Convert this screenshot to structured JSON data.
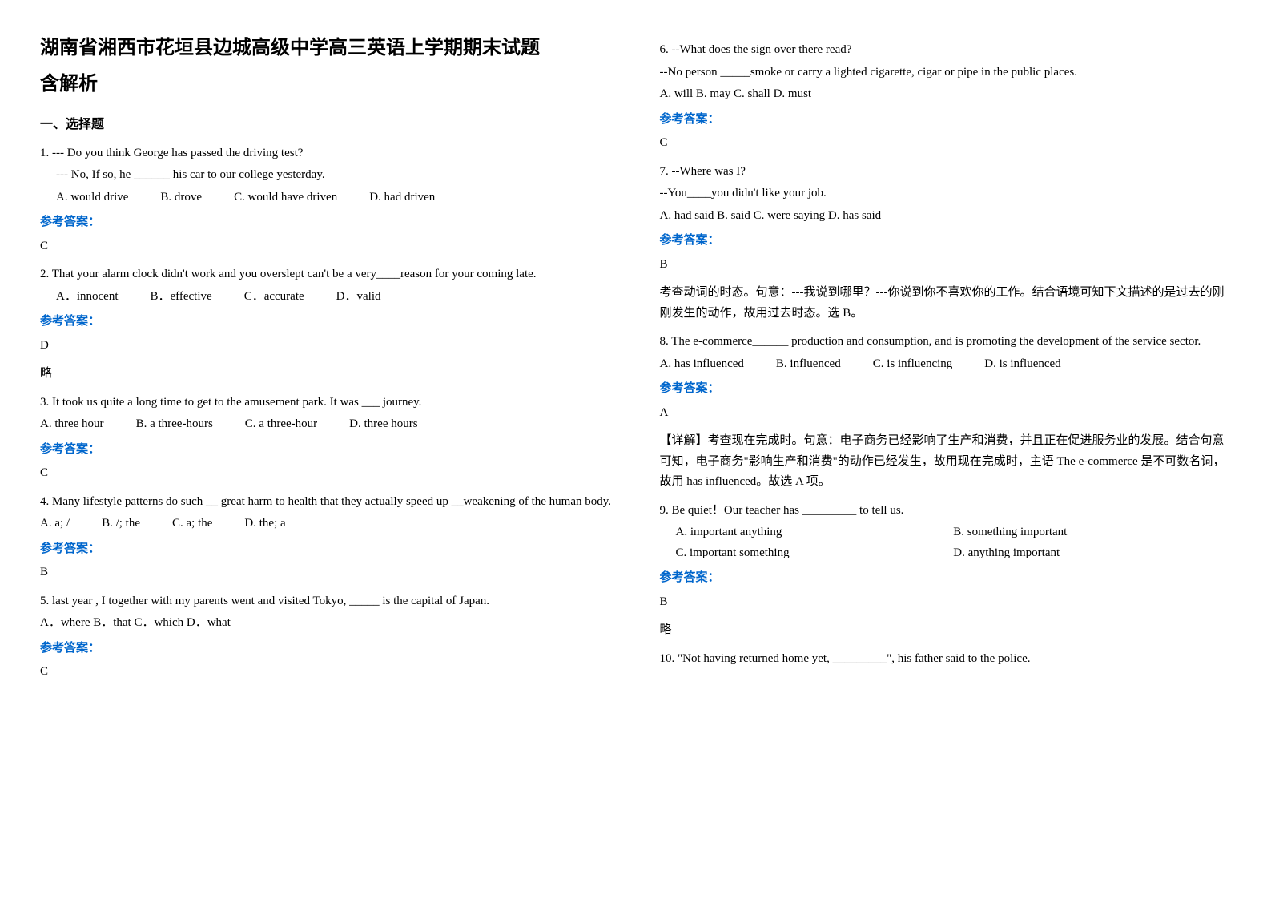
{
  "header": {
    "title": "湖南省湘西市花垣县边城高级中学高三英语上学期期末试题",
    "subtitle": "含解析"
  },
  "sectionHeading": "一、选择题",
  "answerLabel": "参考答案：",
  "columns": {
    "left": {
      "q1": {
        "l1": "1. --- Do you think George has passed the driving test?",
        "l2": "--- No, If so, he ______ his car to our college yesterday.",
        "optA": "A. would drive",
        "optB": "B. drove",
        "optC": "C. would have driven",
        "optD": "D. had driven",
        "answer": "C"
      },
      "q2": {
        "l1": "2. That your alarm clock didn't work and you overslept can't be a very____reason for your coming late.",
        "optA": "A．innocent",
        "optB": "B．effective",
        "optC": "C．accurate",
        "optD": "D．valid",
        "answer": "D",
        "extra": "略"
      },
      "q3": {
        "l1": "3. It took us quite a long time to get to the amusement park. It was ___ journey.",
        "optA": "A. three hour",
        "optB": "B. a three-hours",
        "optC": "C. a three-hour",
        "optD": "D. three hours",
        "answer": "C"
      },
      "q4": {
        "l1": "  4. Many lifestyle patterns do such __ great harm to health that they actually speed up __weakening of the human body.",
        "optA": "A. a; /",
        "optB": "B. /; the",
        "optC": "C. a; the",
        "optD": "D. the; a",
        "answer": "B"
      },
      "q5": {
        "l1": "5. last year , I together with my parents went and visited Tokyo, _____ is the capital of Japan.",
        "opts": "A．where    B．that    C．which    D．what",
        "answer": "C"
      }
    },
    "right": {
      "q6": {
        "l1": "6. --What does the sign over there read?",
        "l2": "--No person _____smoke or carry a lighted cigarette, cigar or pipe in the public places.",
        "opts": "A. will  B. may  C. shall  D. must",
        "answer": "C"
      },
      "q7": {
        "l1": "7. --Where was I?",
        "l2": "--You____you didn't like your job.",
        "opts": "A. had said    B. said    C. were saying    D. has said",
        "answer": "B",
        "explain": "考查动词的时态。句意：---我说到哪里？---你说到你不喜欢你的工作。结合语境可知下文描述的是过去的刚刚发生的动作，故用过去时态。选 B。"
      },
      "q8": {
        "l1": "8. The e-commerce______ production and consumption, and is promoting the development of the service sector.",
        "optA": "A. has influenced",
        "optB": "B. influenced",
        "optC": "C. is  influencing",
        "optD": "D. is influenced",
        "answer": "A",
        "explain": "【详解】考查现在完成时。句意：电子商务已经影响了生产和消费，并且正在促进服务业的发展。结合句意可知，电子商务\"影响生产和消费\"的动作已经发生，故用现在完成时，主语 The e-commerce 是不可数名词，故用 has influenced。故选 A 项。"
      },
      "q9": {
        "l1": "9. Be quiet！Our teacher has _________ to tell us.",
        "optA": "A. important anything",
        "optB": "B. something important",
        "optC": "C. important something",
        "optD": "D. anything important",
        "answer": "B",
        "extra": "略"
      },
      "q10": {
        "l1": "10. \"Not having returned home yet, _________\", his father said to the police."
      }
    }
  }
}
